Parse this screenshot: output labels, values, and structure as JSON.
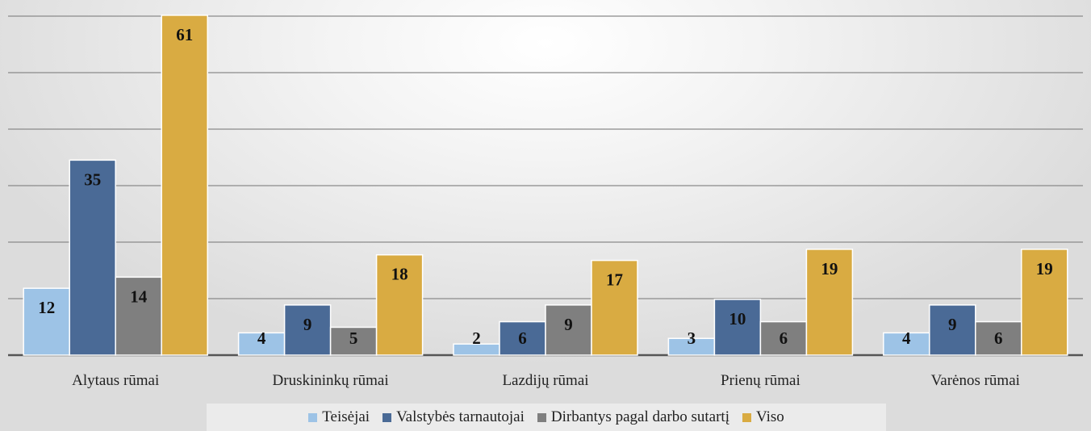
{
  "chart_data": {
    "type": "bar",
    "title": "",
    "xlabel": "",
    "ylabel": "",
    "ylim": [
      0,
      62
    ],
    "grid": true,
    "legend_position": "bottom",
    "categories": [
      "Alytaus rūmai",
      "Druskininkų rūmai",
      "Lazdijų rūmai",
      "Prienų rūmai",
      "Varėnos rūmai"
    ],
    "series": [
      {
        "name": "Teisėjai",
        "color": "#9dc3e6",
        "values": [
          12,
          4,
          2,
          3,
          4
        ]
      },
      {
        "name": "Valstybės tarnautojai",
        "color": "#4a6a96",
        "values": [
          35,
          9,
          6,
          10,
          9
        ]
      },
      {
        "name": "Dirbantys pagal darbo sutartį",
        "color": "#7f7f7f",
        "values": [
          14,
          5,
          9,
          6,
          6
        ]
      },
      {
        "name": "Viso",
        "color": "#d9ab42",
        "values": [
          61,
          18,
          17,
          19,
          19
        ]
      }
    ]
  }
}
